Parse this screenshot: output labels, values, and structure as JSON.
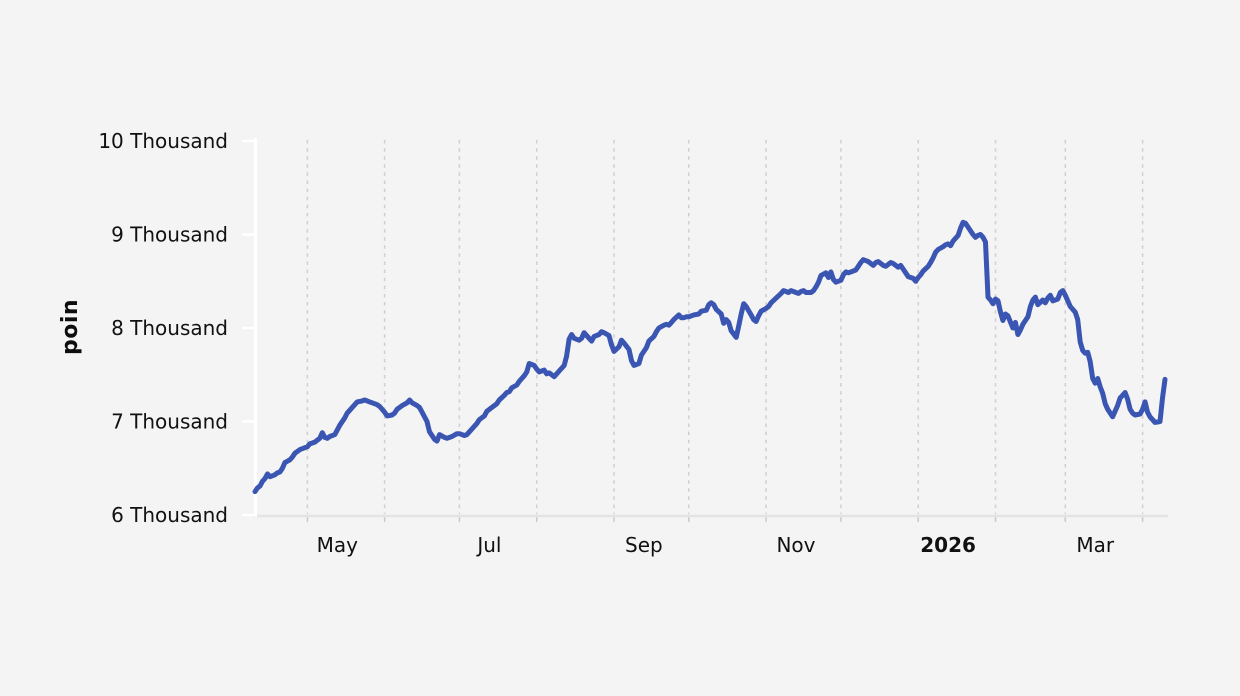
{
  "colors": {
    "background": "#f4f4f4",
    "line": "#3a55b2",
    "gridline": "#cfcfcf",
    "y_axis": "#ffffff",
    "x_axis": "#e4e4e4",
    "x_tick": "#c9c9c9",
    "text": "#111111"
  },
  "chart_data": {
    "type": "line",
    "title": "",
    "xlabel": "",
    "ylabel": "poin",
    "legend": "none",
    "grid": "vertical-dashed-monthly",
    "ylim": [
      6000,
      10000
    ],
    "x_unit": "days (day 0 ≈ 2025-04-10, span ≈ 1 year to 2026-04-10)",
    "x_range_days": 365,
    "y_ticks": [
      {
        "value": 6000,
        "label": "6 Thousand"
      },
      {
        "value": 7000,
        "label": "7 Thousand"
      },
      {
        "value": 8000,
        "label": "8 Thousand"
      },
      {
        "value": 9000,
        "label": "9 Thousand"
      },
      {
        "value": 10000,
        "label": "10 Thousand"
      }
    ],
    "x_gridline_days": [
      21,
      52,
      82,
      113,
      144,
      174,
      205,
      235,
      266,
      297,
      325,
      356
    ],
    "x_labels": [
      {
        "label": "May",
        "day": 33,
        "bold": false
      },
      {
        "label": "Jul",
        "day": 94,
        "bold": false
      },
      {
        "label": "Sep",
        "day": 156,
        "bold": false
      },
      {
        "label": "Nov",
        "day": 217,
        "bold": false
      },
      {
        "label": "2026",
        "day": 278,
        "bold": true
      },
      {
        "label": "Mar",
        "day": 337,
        "bold": false
      }
    ],
    "points": [
      [
        0,
        6250
      ],
      [
        1,
        6290
      ],
      [
        2,
        6310
      ],
      [
        3,
        6360
      ],
      [
        4,
        6390
      ],
      [
        5,
        6440
      ],
      [
        6,
        6410
      ],
      [
        8,
        6430
      ],
      [
        9,
        6450
      ],
      [
        10,
        6460
      ],
      [
        11,
        6500
      ],
      [
        12,
        6560
      ],
      [
        14,
        6590
      ],
      [
        15,
        6620
      ],
      [
        16,
        6660
      ],
      [
        18,
        6700
      ],
      [
        20,
        6720
      ],
      [
        21,
        6730
      ],
      [
        22,
        6760
      ],
      [
        24,
        6780
      ],
      [
        26,
        6820
      ],
      [
        27,
        6880
      ],
      [
        28,
        6830
      ],
      [
        29,
        6820
      ],
      [
        30,
        6840
      ],
      [
        32,
        6860
      ],
      [
        33,
        6910
      ],
      [
        34,
        6960
      ],
      [
        36,
        7040
      ],
      [
        37,
        7090
      ],
      [
        38,
        7120
      ],
      [
        40,
        7180
      ],
      [
        41,
        7210
      ],
      [
        43,
        7220
      ],
      [
        44,
        7230
      ],
      [
        46,
        7210
      ],
      [
        47,
        7200
      ],
      [
        49,
        7180
      ],
      [
        50,
        7160
      ],
      [
        52,
        7100
      ],
      [
        53,
        7060
      ],
      [
        55,
        7070
      ],
      [
        56,
        7090
      ],
      [
        57,
        7130
      ],
      [
        59,
        7170
      ],
      [
        61,
        7200
      ],
      [
        62,
        7230
      ],
      [
        63,
        7200
      ],
      [
        65,
        7170
      ],
      [
        66,
        7150
      ],
      [
        67,
        7100
      ],
      [
        69,
        7000
      ],
      [
        70,
        6890
      ],
      [
        72,
        6810
      ],
      [
        73,
        6790
      ],
      [
        74,
        6860
      ],
      [
        76,
        6830
      ],
      [
        77,
        6820
      ],
      [
        79,
        6840
      ],
      [
        81,
        6870
      ],
      [
        82,
        6870
      ],
      [
        84,
        6850
      ],
      [
        85,
        6860
      ],
      [
        86,
        6890
      ],
      [
        87,
        6920
      ],
      [
        89,
        6980
      ],
      [
        90,
        7020
      ],
      [
        92,
        7060
      ],
      [
        93,
        7110
      ],
      [
        95,
        7150
      ],
      [
        97,
        7190
      ],
      [
        98,
        7230
      ],
      [
        100,
        7280
      ],
      [
        101,
        7310
      ],
      [
        102,
        7320
      ],
      [
        103,
        7360
      ],
      [
        105,
        7390
      ],
      [
        106,
        7430
      ],
      [
        108,
        7490
      ],
      [
        109,
        7530
      ],
      [
        110,
        7620
      ],
      [
        112,
        7600
      ],
      [
        113,
        7560
      ],
      [
        114,
        7530
      ],
      [
        116,
        7550
      ],
      [
        117,
        7510
      ],
      [
        118,
        7520
      ],
      [
        120,
        7480
      ],
      [
        121,
        7510
      ],
      [
        122,
        7540
      ],
      [
        124,
        7600
      ],
      [
        125,
        7700
      ],
      [
        126,
        7880
      ],
      [
        127,
        7930
      ],
      [
        128,
        7890
      ],
      [
        130,
        7870
      ],
      [
        131,
        7890
      ],
      [
        132,
        7950
      ],
      [
        134,
        7890
      ],
      [
        135,
        7860
      ],
      [
        136,
        7910
      ],
      [
        138,
        7930
      ],
      [
        139,
        7960
      ],
      [
        140,
        7950
      ],
      [
        142,
        7920
      ],
      [
        143,
        7820
      ],
      [
        144,
        7750
      ],
      [
        146,
        7800
      ],
      [
        147,
        7870
      ],
      [
        148,
        7840
      ],
      [
        150,
        7770
      ],
      [
        151,
        7650
      ],
      [
        152,
        7600
      ],
      [
        154,
        7620
      ],
      [
        155,
        7710
      ],
      [
        156,
        7750
      ],
      [
        157,
        7790
      ],
      [
        158,
        7860
      ],
      [
        160,
        7910
      ],
      [
        161,
        7960
      ],
      [
        162,
        8000
      ],
      [
        164,
        8030
      ],
      [
        165,
        8040
      ],
      [
        166,
        8030
      ],
      [
        167,
        8060
      ],
      [
        168,
        8090
      ],
      [
        170,
        8140
      ],
      [
        171,
        8110
      ],
      [
        172,
        8110
      ],
      [
        173,
        8120
      ],
      [
        174,
        8120
      ],
      [
        176,
        8140
      ],
      [
        178,
        8150
      ],
      [
        179,
        8180
      ],
      [
        181,
        8190
      ],
      [
        182,
        8250
      ],
      [
        183,
        8270
      ],
      [
        184,
        8250
      ],
      [
        185,
        8200
      ],
      [
        187,
        8150
      ],
      [
        188,
        8050
      ],
      [
        189,
        8090
      ],
      [
        190,
        8060
      ],
      [
        191,
        7970
      ],
      [
        193,
        7900
      ],
      [
        194,
        8020
      ],
      [
        195,
        8150
      ],
      [
        196,
        8260
      ],
      [
        197,
        8230
      ],
      [
        199,
        8140
      ],
      [
        200,
        8090
      ],
      [
        201,
        8070
      ],
      [
        202,
        8130
      ],
      [
        203,
        8180
      ],
      [
        205,
        8210
      ],
      [
        206,
        8230
      ],
      [
        207,
        8270
      ],
      [
        209,
        8320
      ],
      [
        211,
        8370
      ],
      [
        212,
        8400
      ],
      [
        213,
        8390
      ],
      [
        214,
        8380
      ],
      [
        215,
        8400
      ],
      [
        217,
        8380
      ],
      [
        218,
        8370
      ],
      [
        219,
        8390
      ],
      [
        220,
        8400
      ],
      [
        221,
        8380
      ],
      [
        223,
        8380
      ],
      [
        224,
        8400
      ],
      [
        225,
        8440
      ],
      [
        226,
        8490
      ],
      [
        227,
        8560
      ],
      [
        229,
        8590
      ],
      [
        230,
        8540
      ],
      [
        231,
        8600
      ],
      [
        232,
        8520
      ],
      [
        233,
        8490
      ],
      [
        235,
        8510
      ],
      [
        236,
        8570
      ],
      [
        237,
        8600
      ],
      [
        238,
        8590
      ],
      [
        239,
        8600
      ],
      [
        241,
        8620
      ],
      [
        242,
        8660
      ],
      [
        243,
        8700
      ],
      [
        244,
        8730
      ],
      [
        246,
        8710
      ],
      [
        247,
        8690
      ],
      [
        248,
        8670
      ],
      [
        249,
        8700
      ],
      [
        250,
        8710
      ],
      [
        252,
        8670
      ],
      [
        253,
        8660
      ],
      [
        254,
        8680
      ],
      [
        255,
        8700
      ],
      [
        256,
        8690
      ],
      [
        258,
        8650
      ],
      [
        259,
        8670
      ],
      [
        260,
        8630
      ],
      [
        261,
        8590
      ],
      [
        262,
        8550
      ],
      [
        264,
        8530
      ],
      [
        265,
        8500
      ],
      [
        266,
        8540
      ],
      [
        267,
        8570
      ],
      [
        268,
        8610
      ],
      [
        270,
        8660
      ],
      [
        271,
        8700
      ],
      [
        272,
        8750
      ],
      [
        273,
        8810
      ],
      [
        274,
        8840
      ],
      [
        276,
        8870
      ],
      [
        277,
        8890
      ],
      [
        278,
        8900
      ],
      [
        279,
        8880
      ],
      [
        280,
        8930
      ],
      [
        282,
        8990
      ],
      [
        283,
        9070
      ],
      [
        284,
        9130
      ],
      [
        285,
        9120
      ],
      [
        286,
        9080
      ],
      [
        288,
        9000
      ],
      [
        289,
        8970
      ],
      [
        290,
        8990
      ],
      [
        291,
        9000
      ],
      [
        292,
        8970
      ],
      [
        293,
        8920
      ],
      [
        294,
        8330
      ],
      [
        295,
        8300
      ],
      [
        296,
        8260
      ],
      [
        297,
        8310
      ],
      [
        298,
        8290
      ],
      [
        299,
        8170
      ],
      [
        300,
        8080
      ],
      [
        301,
        8150
      ],
      [
        302,
        8130
      ],
      [
        304,
        8000
      ],
      [
        305,
        8060
      ],
      [
        306,
        7930
      ],
      [
        307,
        7980
      ],
      [
        308,
        8040
      ],
      [
        310,
        8120
      ],
      [
        311,
        8230
      ],
      [
        312,
        8300
      ],
      [
        313,
        8330
      ],
      [
        314,
        8250
      ],
      [
        316,
        8300
      ],
      [
        317,
        8270
      ],
      [
        318,
        8320
      ],
      [
        319,
        8350
      ],
      [
        320,
        8290
      ],
      [
        322,
        8310
      ],
      [
        323,
        8380
      ],
      [
        324,
        8400
      ],
      [
        325,
        8350
      ],
      [
        326,
        8290
      ],
      [
        327,
        8230
      ],
      [
        329,
        8170
      ],
      [
        330,
        8090
      ],
      [
        331,
        7850
      ],
      [
        332,
        7760
      ],
      [
        333,
        7730
      ],
      [
        334,
        7740
      ],
      [
        335,
        7640
      ],
      [
        336,
        7460
      ],
      [
        337,
        7410
      ],
      [
        338,
        7460
      ],
      [
        339,
        7370
      ],
      [
        340,
        7300
      ],
      [
        341,
        7190
      ],
      [
        342,
        7130
      ],
      [
        344,
        7050
      ],
      [
        345,
        7110
      ],
      [
        346,
        7170
      ],
      [
        347,
        7250
      ],
      [
        349,
        7310
      ],
      [
        350,
        7240
      ],
      [
        351,
        7130
      ],
      [
        352,
        7090
      ],
      [
        353,
        7070
      ],
      [
        355,
        7080
      ],
      [
        356,
        7130
      ],
      [
        357,
        7210
      ],
      [
        358,
        7100
      ],
      [
        359,
        7050
      ],
      [
        360,
        7020
      ],
      [
        361,
        6990
      ],
      [
        362,
        6995
      ],
      [
        363,
        7000
      ],
      [
        364,
        7250
      ],
      [
        365,
        7450
      ]
    ]
  }
}
